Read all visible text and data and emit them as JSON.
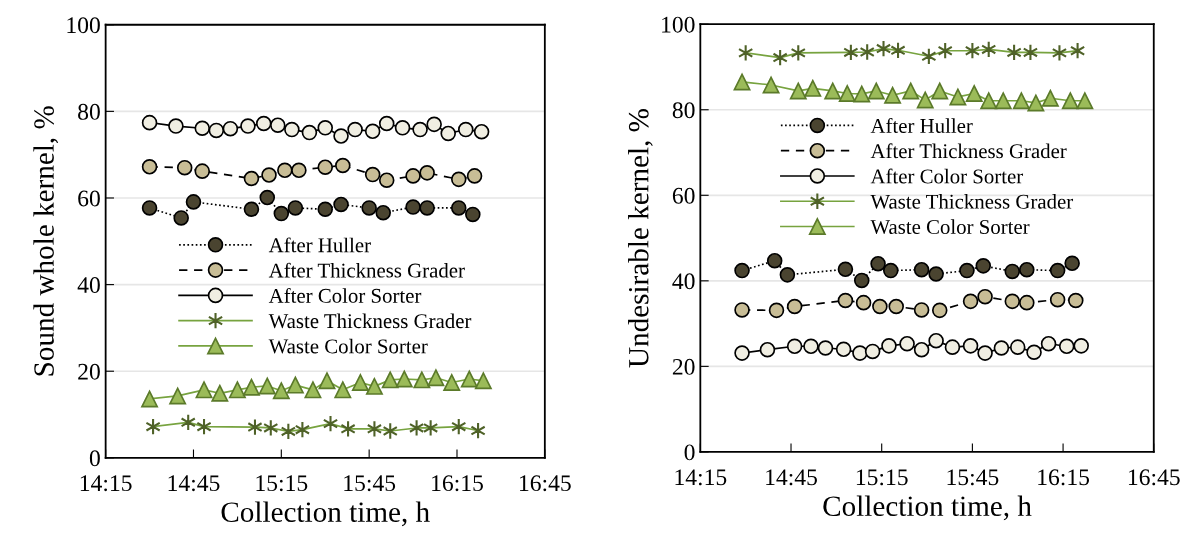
{
  "chart_data": [
    {
      "type": "line",
      "ylabel": "Sound whole kernel, %",
      "xlabel": "Collection time, h",
      "xlim": [
        14.25,
        16.75
      ],
      "xticks": [
        {
          "value": 14.25,
          "label": "14:15"
        },
        {
          "value": 14.75,
          "label": "14:45"
        },
        {
          "value": 15.25,
          "label": "15:15"
        },
        {
          "value": 15.75,
          "label": "15:45"
        },
        {
          "value": 16.25,
          "label": "16:15"
        },
        {
          "value": 16.75,
          "label": "16:45"
        }
      ],
      "ylim": [
        0,
        100
      ],
      "yticks": [
        0,
        20,
        40,
        60,
        80,
        100
      ],
      "grid": "y",
      "legend": "center",
      "series": [
        {
          "name": "After Huller",
          "color": "#4a4430",
          "line_style": "dotted",
          "marker": "circle",
          "x": [
            14.5,
            14.68,
            14.75,
            15.08,
            15.17,
            15.25,
            15.33,
            15.5,
            15.59,
            15.75,
            15.83,
            16.0,
            16.08,
            16.26,
            16.34
          ],
          "values": [
            57.7,
            55.4,
            59.1,
            57.4,
            60.1,
            56.4,
            57.7,
            57.4,
            58.5,
            57.7,
            56.6,
            57.9,
            57.7,
            57.7,
            56.2
          ]
        },
        {
          "name": "After Thickness Grader",
          "color": "#c8bd96",
          "line_style": "dashed",
          "marker": "circle",
          "x": [
            14.5,
            14.7,
            14.8,
            15.08,
            15.18,
            15.27,
            15.35,
            15.5,
            15.6,
            15.77,
            15.85,
            16.0,
            16.08,
            16.26,
            16.35
          ],
          "values": [
            67.2,
            67.0,
            66.2,
            64.5,
            65.3,
            66.4,
            66.4,
            67.1,
            67.5,
            65.4,
            64.1,
            65.1,
            65.8,
            64.3,
            65.1
          ]
        },
        {
          "name": "After Color Sorter",
          "color": "#f0eee2",
          "line_style": "solid",
          "marker": "circle",
          "x": [
            14.5,
            14.65,
            14.8,
            14.88,
            14.96,
            15.06,
            15.15,
            15.23,
            15.31,
            15.41,
            15.5,
            15.59,
            15.67,
            15.77,
            15.85,
            15.94,
            16.04,
            16.12,
            16.2,
            16.3,
            16.39
          ],
          "values": [
            77.4,
            76.6,
            76.1,
            75.6,
            76.0,
            76.6,
            77.2,
            76.8,
            75.8,
            75.1,
            76.2,
            74.3,
            75.8,
            75.4,
            77.2,
            76.2,
            75.8,
            77.0,
            74.9,
            75.8,
            75.3
          ]
        },
        {
          "name": "Waste Thickness Grader",
          "color": "#4f6228",
          "line_style": "solid",
          "marker": "cross",
          "x": [
            14.52,
            14.72,
            14.81,
            15.1,
            15.19,
            15.29,
            15.37,
            15.53,
            15.63,
            15.78,
            15.87,
            16.02,
            16.1,
            16.26,
            16.37
          ],
          "values": [
            7.2,
            8.2,
            7.2,
            7.1,
            6.9,
            6.1,
            6.5,
            7.9,
            6.7,
            6.7,
            6.2,
            6.9,
            6.9,
            7.2,
            6.3
          ]
        },
        {
          "name": "Waste Color Sorter",
          "color": "#9bbb59",
          "line_style": "solid",
          "marker": "triangle",
          "x": [
            14.5,
            14.66,
            14.81,
            14.9,
            15.0,
            15.08,
            15.17,
            15.25,
            15.33,
            15.43,
            15.51,
            15.6,
            15.7,
            15.78,
            15.87,
            15.95,
            16.05,
            16.13,
            16.22,
            16.32,
            16.4
          ],
          "values": [
            13.6,
            14.3,
            15.7,
            14.9,
            15.7,
            16.3,
            16.6,
            15.5,
            16.8,
            15.7,
            17.8,
            15.7,
            17.4,
            16.5,
            18.0,
            18.2,
            18.0,
            18.5,
            17.4,
            18.2,
            17.8
          ]
        }
      ]
    },
    {
      "type": "line",
      "ylabel": "Undesirable kernel, %",
      "xlabel": "Collection time, h",
      "xlim": [
        14.25,
        16.75
      ],
      "xticks": [
        {
          "value": 14.25,
          "label": "14:15"
        },
        {
          "value": 14.75,
          "label": "14:45"
        },
        {
          "value": 15.25,
          "label": "15:15"
        },
        {
          "value": 15.75,
          "label": "15:45"
        },
        {
          "value": 16.25,
          "label": "16:15"
        },
        {
          "value": 16.75,
          "label": "16:45"
        }
      ],
      "ylim": [
        0,
        100
      ],
      "yticks": [
        0,
        20,
        40,
        60,
        80,
        100
      ],
      "grid": "y",
      "legend": "upper center",
      "series": [
        {
          "name": "After Huller",
          "color": "#4a4430",
          "line_style": "dotted",
          "marker": "circle",
          "x": [
            14.48,
            14.66,
            14.73,
            15.05,
            15.14,
            15.23,
            15.3,
            15.47,
            15.55,
            15.72,
            15.81,
            15.97,
            16.05,
            16.22,
            16.3
          ],
          "values": [
            42.4,
            44.7,
            41.4,
            42.7,
            40.1,
            44.0,
            42.4,
            42.6,
            41.6,
            42.4,
            43.5,
            42.2,
            42.6,
            42.4,
            44.1
          ]
        },
        {
          "name": "After Thickness Grader",
          "color": "#c8bd96",
          "line_style": "dashed",
          "marker": "circle",
          "x": [
            14.48,
            14.67,
            14.77,
            15.05,
            15.15,
            15.24,
            15.33,
            15.47,
            15.57,
            15.74,
            15.82,
            15.97,
            16.05,
            16.22,
            16.32
          ],
          "values": [
            33.2,
            33.1,
            34.0,
            35.4,
            34.9,
            34.0,
            34.0,
            33.2,
            33.1,
            35.2,
            36.3,
            35.2,
            34.9,
            35.6,
            35.4
          ]
        },
        {
          "name": "After Color Sorter",
          "color": "#f0eee2",
          "line_style": "solid",
          "marker": "circle",
          "x": [
            14.48,
            14.62,
            14.77,
            14.86,
            14.94,
            15.04,
            15.13,
            15.2,
            15.29,
            15.39,
            15.47,
            15.55,
            15.64,
            15.74,
            15.82,
            15.91,
            16.0,
            16.09,
            16.17,
            16.27,
            16.35
          ],
          "values": [
            23.1,
            23.9,
            24.7,
            24.7,
            24.3,
            24.0,
            23.1,
            23.5,
            24.8,
            25.3,
            23.9,
            26.0,
            24.5,
            24.8,
            23.1,
            24.3,
            24.5,
            23.3,
            25.3,
            24.7,
            24.8
          ]
        },
        {
          "name": "Waste Thickness Grader",
          "color": "#4f6228",
          "line_style": "solid",
          "marker": "cross",
          "x": [
            14.5,
            14.69,
            14.79,
            15.08,
            15.17,
            15.26,
            15.34,
            15.51,
            15.6,
            15.75,
            15.84,
            15.98,
            16.07,
            16.23,
            16.33
          ],
          "values": [
            93.3,
            92.2,
            93.3,
            93.4,
            93.5,
            94.3,
            93.9,
            92.5,
            93.8,
            93.8,
            94.1,
            93.4,
            93.4,
            93.3,
            93.8
          ]
        },
        {
          "name": "Waste Color Sorter",
          "color": "#9bbb59",
          "line_style": "solid",
          "marker": "triangle",
          "x": [
            14.48,
            14.64,
            14.79,
            14.87,
            14.98,
            15.06,
            15.14,
            15.22,
            15.31,
            15.41,
            15.49,
            15.57,
            15.67,
            15.76,
            15.84,
            15.92,
            16.02,
            16.1,
            16.18,
            16.29,
            16.37
          ],
          "values": [
            86.5,
            85.8,
            84.4,
            85.0,
            84.4,
            83.8,
            83.7,
            84.4,
            83.4,
            84.4,
            82.3,
            84.4,
            83.0,
            83.8,
            82.1,
            82.1,
            82.1,
            81.6,
            82.7,
            82.1,
            82.1
          ]
        }
      ]
    }
  ]
}
